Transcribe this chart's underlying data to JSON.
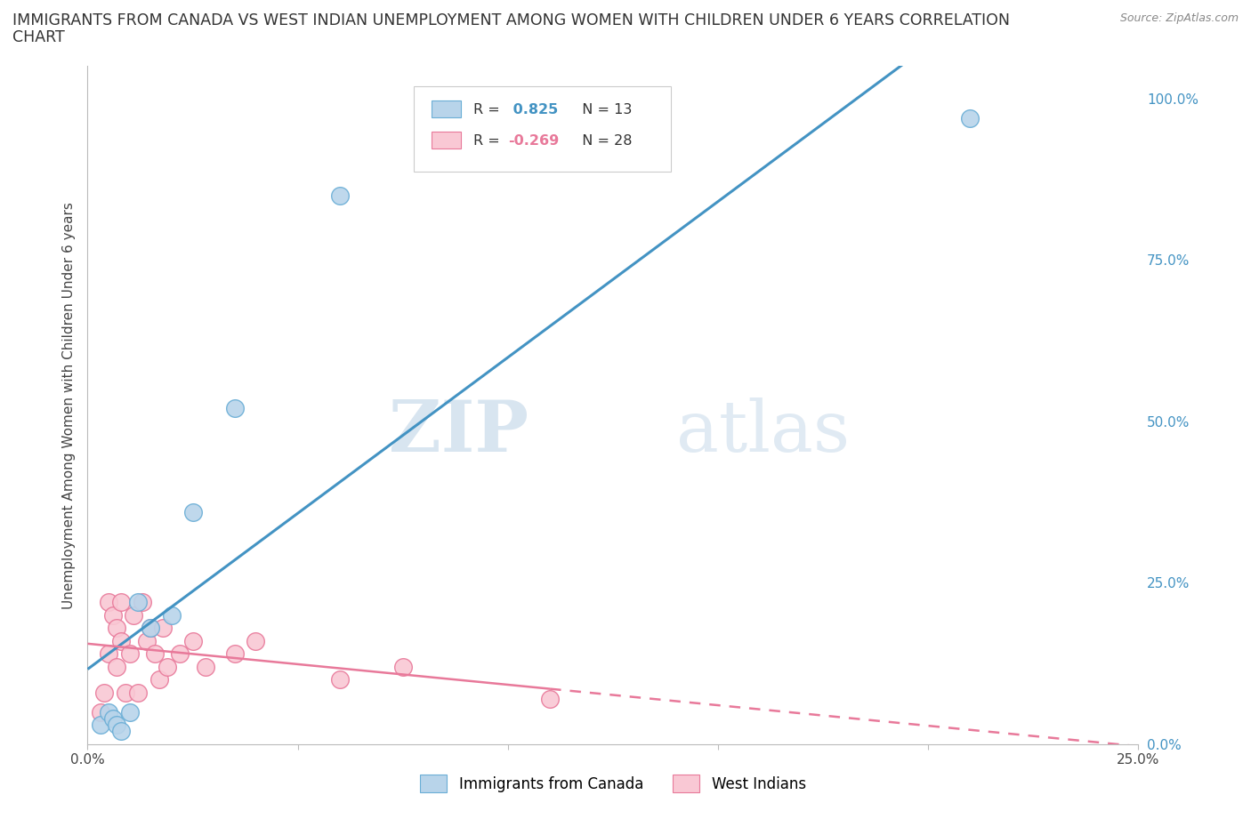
{
  "title_line1": "IMMIGRANTS FROM CANADA VS WEST INDIAN UNEMPLOYMENT AMONG WOMEN WITH CHILDREN UNDER 6 YEARS CORRELATION",
  "title_line2": "CHART",
  "source": "Source: ZipAtlas.com",
  "ylabel": "Unemployment Among Women with Children Under 6 years",
  "xlim": [
    0.0,
    0.25
  ],
  "ylim": [
    0.0,
    1.05
  ],
  "ytick_vals": [
    0.0,
    0.25,
    0.5,
    0.75,
    1.0
  ],
  "xtick_vals": [
    0.0,
    0.05,
    0.1,
    0.15,
    0.2,
    0.25
  ],
  "canada_r": "0.825",
  "canada_n": "13",
  "westindian_r": "-0.269",
  "westindian_n": "28",
  "canada_color": "#b8d4ea",
  "canada_edge_color": "#6aaed6",
  "canada_line_color": "#4393c3",
  "westindian_color": "#f9c8d4",
  "westindian_edge_color": "#e8799a",
  "westindian_line_color": "#e8799a",
  "ytick_color": "#4393c3",
  "canada_scatter_x": [
    0.003,
    0.005,
    0.006,
    0.007,
    0.008,
    0.01,
    0.012,
    0.015,
    0.02,
    0.025,
    0.035,
    0.06,
    0.21
  ],
  "canada_scatter_y": [
    0.03,
    0.05,
    0.04,
    0.03,
    0.02,
    0.05,
    0.22,
    0.18,
    0.2,
    0.36,
    0.52,
    0.85,
    0.97
  ],
  "westindian_scatter_x": [
    0.003,
    0.004,
    0.005,
    0.005,
    0.006,
    0.007,
    0.007,
    0.008,
    0.008,
    0.009,
    0.01,
    0.011,
    0.012,
    0.013,
    0.014,
    0.015,
    0.016,
    0.017,
    0.018,
    0.019,
    0.022,
    0.025,
    0.028,
    0.035,
    0.04,
    0.06,
    0.075,
    0.11
  ],
  "westindian_scatter_y": [
    0.05,
    0.08,
    0.14,
    0.22,
    0.2,
    0.12,
    0.18,
    0.16,
    0.22,
    0.08,
    0.14,
    0.2,
    0.08,
    0.22,
    0.16,
    0.18,
    0.14,
    0.1,
    0.18,
    0.12,
    0.14,
    0.16,
    0.12,
    0.14,
    0.16,
    0.1,
    0.12,
    0.07
  ],
  "watermark_zip": "ZIP",
  "watermark_atlas": "atlas",
  "background_color": "#ffffff",
  "grid_color": "#cccccc"
}
